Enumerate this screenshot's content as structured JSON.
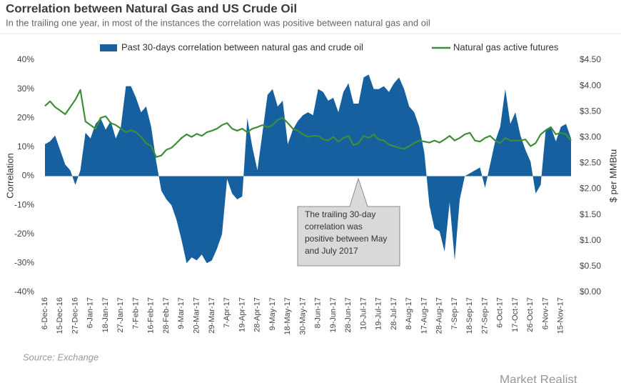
{
  "chart_data": {
    "type": "area",
    "title": "Correlation between Natural Gas and US Crude Oil",
    "subtitle": "In the trailing one year, in most of the instances the correlation was positive between natural gas and oil",
    "y_label": "Correlation",
    "y2_label": "$ per MMBtu",
    "source": "Source: Exchange",
    "logo": "Market Realist",
    "annotation": {
      "lines": [
        "The trailing 30-day",
        "correlation was",
        "positive between May",
        "and July 2017"
      ]
    },
    "categories": [
      "6-Dec-16",
      null,
      null,
      "15-Dec-16",
      null,
      null,
      "27-Dec-16",
      null,
      null,
      "6-Jan-17",
      null,
      null,
      "18-Jan-17",
      null,
      null,
      "27-Jan-17",
      null,
      null,
      "7-Feb-17",
      null,
      null,
      "16-Feb-17",
      null,
      null,
      "28-Feb-17",
      null,
      null,
      "9-Mar-17",
      null,
      null,
      "20-Mar-17",
      null,
      null,
      "29-Mar-17",
      null,
      null,
      "7-Apr-17",
      null,
      null,
      "19-Apr-17",
      null,
      null,
      "28-Apr-17",
      null,
      null,
      "9-May-17",
      null,
      null,
      "18-May-17",
      null,
      null,
      "30-May-17",
      null,
      null,
      "8-Jun-17",
      null,
      null,
      "19-Jun-17",
      null,
      null,
      "28-Jun-17",
      null,
      null,
      "10-Jul-17",
      null,
      null,
      "19-Jul-17",
      null,
      null,
      "28-Jul-17",
      null,
      null,
      "8-Aug-17",
      null,
      null,
      "17-Aug-17",
      null,
      null,
      "28-Aug-17",
      null,
      null,
      "7-Sep-17",
      null,
      null,
      "18-Sep-17",
      null,
      null,
      "27-Sep-17",
      null,
      null,
      "6-Oct-17",
      null,
      null,
      "17-Oct-17",
      null,
      null,
      "26-Oct-17",
      null,
      null,
      "6-Nov-17",
      null,
      null,
      "15-Nov-17",
      null,
      null
    ],
    "series": [
      {
        "name": "Past 30-days correlation between natural gas and crude oil",
        "type": "area",
        "color": "#17609f",
        "values": [
          11,
          12,
          14,
          9,
          4,
          2,
          -3,
          2,
          15,
          13,
          18,
          20,
          16,
          19,
          13,
          17,
          31,
          31,
          27,
          22,
          24,
          17,
          5,
          -5,
          -8,
          -10,
          -15,
          -22,
          -30,
          -28,
          -29,
          -27,
          -30,
          -29,
          -25,
          -20,
          -1,
          -6,
          -8,
          -7,
          20,
          10,
          2,
          15,
          28,
          30,
          24,
          26,
          11,
          16,
          19,
          21,
          22,
          21,
          30,
          29,
          26,
          27,
          22,
          29,
          32,
          25,
          25,
          34,
          35,
          30,
          30,
          31,
          29,
          32,
          34,
          30,
          24,
          22,
          17,
          8,
          -10,
          -18,
          -19,
          -26,
          -9,
          -29,
          -8,
          0,
          1,
          2,
          3,
          -4,
          4,
          12,
          17,
          30,
          18,
          22,
          14,
          9,
          5,
          -6,
          -3,
          16,
          17,
          12,
          17,
          18,
          13
        ]
      },
      {
        "name": "Natural gas active futures",
        "type": "line",
        "color": "#3d8f35",
        "axis": "y2",
        "values": [
          3.61,
          3.7,
          3.59,
          3.52,
          3.45,
          3.59,
          3.73,
          3.92,
          3.31,
          3.24,
          3.17,
          3.38,
          3.41,
          3.28,
          3.24,
          3.17,
          3.1,
          3.14,
          3.1,
          3.01,
          2.89,
          2.83,
          2.62,
          2.65,
          2.76,
          2.8,
          2.89,
          2.99,
          3.06,
          3.01,
          3.07,
          3.03,
          3.1,
          3.13,
          3.17,
          3.24,
          3.28,
          3.17,
          3.13,
          3.17,
          3.1,
          3.17,
          3.2,
          3.24,
          3.2,
          3.24,
          3.34,
          3.38,
          3.28,
          3.17,
          3.13,
          3.06,
          3.01,
          3.03,
          3.03,
          2.96,
          2.94,
          3.01,
          2.92,
          2.99,
          3.03,
          2.85,
          2.89,
          3.03,
          2.99,
          3.06,
          2.96,
          2.94,
          2.86,
          2.83,
          2.8,
          2.78,
          2.83,
          2.89,
          2.94,
          2.92,
          2.9,
          2.94,
          2.9,
          2.96,
          3.03,
          2.94,
          2.99,
          3.06,
          3.09,
          2.94,
          2.92,
          2.99,
          3.03,
          2.94,
          2.89,
          2.99,
          2.94,
          2.94,
          2.94,
          2.96,
          2.83,
          2.89,
          3.06,
          3.14,
          3.2,
          3.06,
          3.09,
          3.06,
          2.94
        ]
      }
    ],
    "ylim": [
      -40,
      40
    ],
    "yticks": [
      {
        "value": -40,
        "label": "-40%"
      },
      {
        "value": -30,
        "label": "-30%"
      },
      {
        "value": -20,
        "label": "-20%"
      },
      {
        "value": -10,
        "label": "-10%"
      },
      {
        "value": 0,
        "label": "0%"
      },
      {
        "value": 10,
        "label": "10%"
      },
      {
        "value": 20,
        "label": "20%"
      },
      {
        "value": 30,
        "label": "30%"
      },
      {
        "value": 40,
        "label": "40%"
      }
    ],
    "y2lim": [
      0,
      4.5
    ],
    "y2ticks": [
      {
        "value": 0,
        "label": "$0.00"
      },
      {
        "value": 0.5,
        "label": "$0.50"
      },
      {
        "value": 1,
        "label": "$1.00"
      },
      {
        "value": 1.5,
        "label": "$1.50"
      },
      {
        "value": 2,
        "label": "$2.00"
      },
      {
        "value": 2.5,
        "label": "$2.50"
      },
      {
        "value": 3,
        "label": "$3.00"
      },
      {
        "value": 3.5,
        "label": "$3.50"
      },
      {
        "value": 4,
        "label": "$4.00"
      },
      {
        "value": 4.5,
        "label": "$4.50"
      }
    ],
    "grid": false,
    "legend": "top"
  }
}
